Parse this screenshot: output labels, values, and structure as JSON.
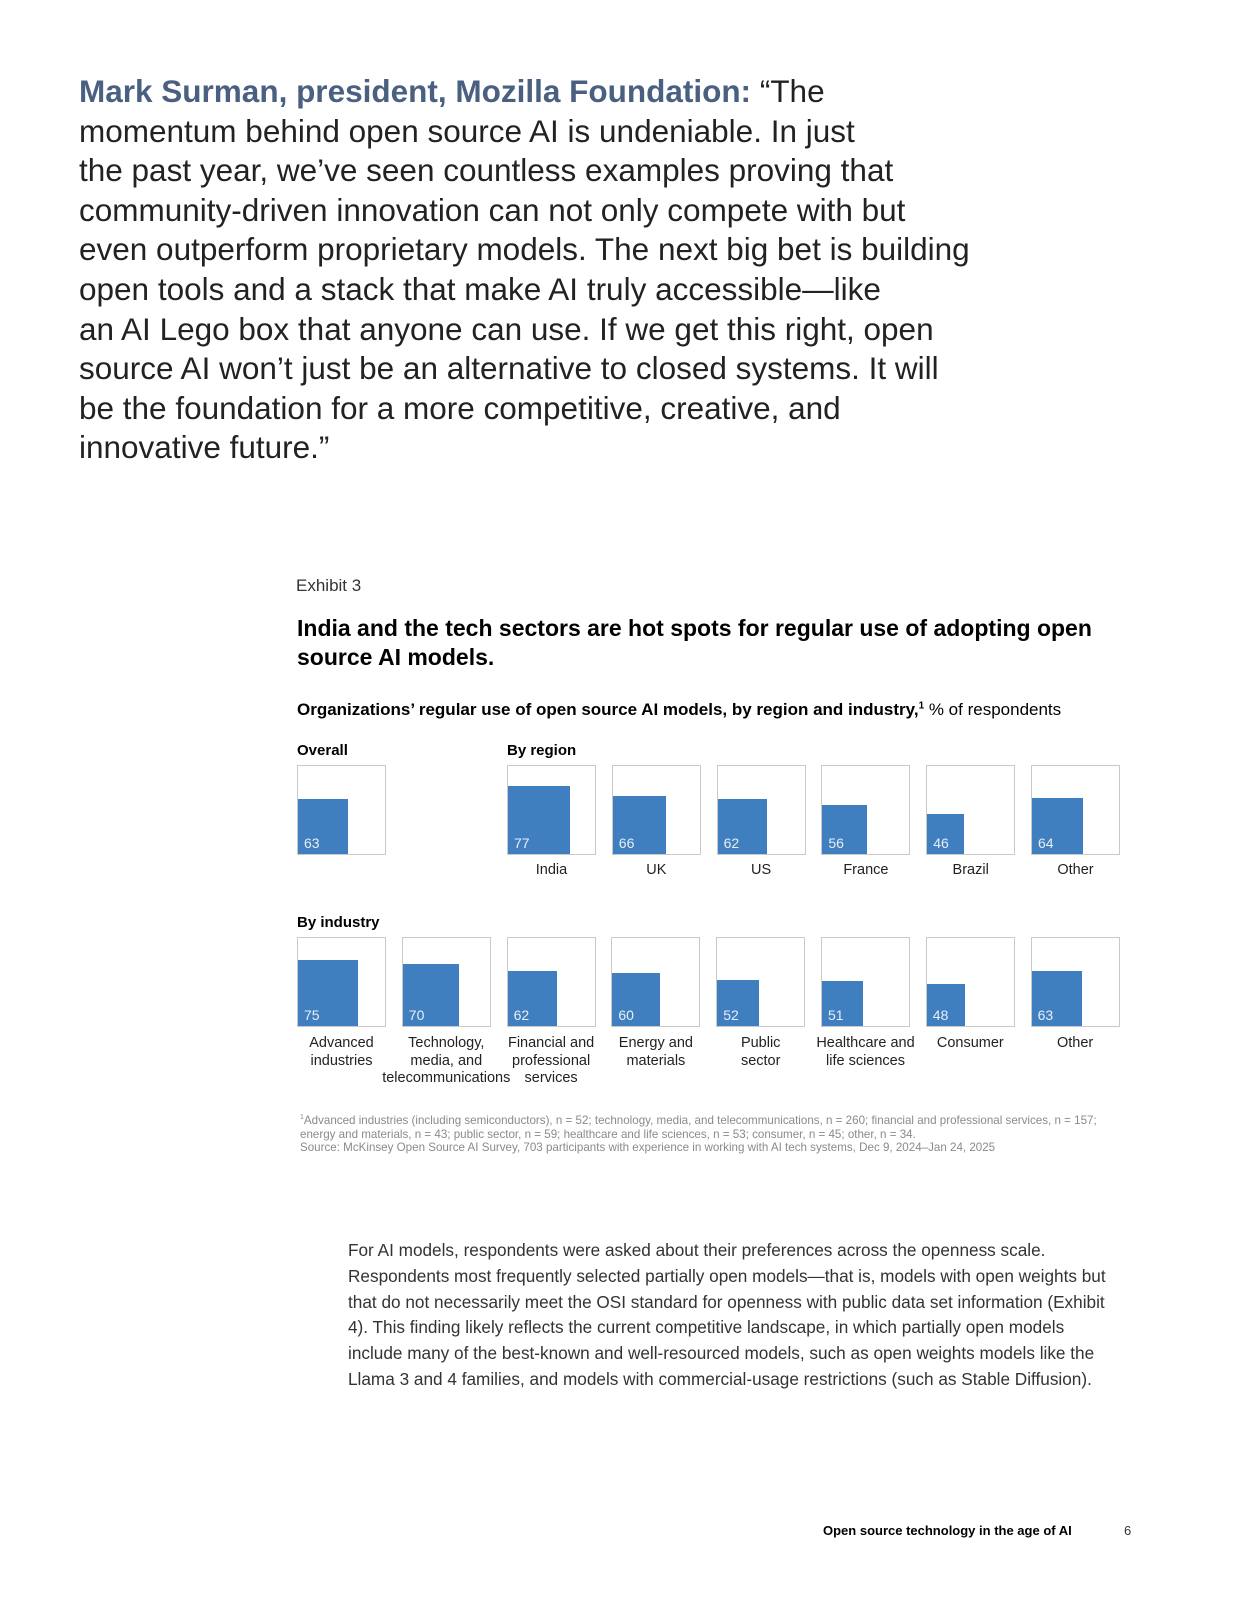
{
  "quote": {
    "speaker": "Mark Surman, president, Mozilla Foundation:",
    "lines": [
      "“The",
      "momentum behind open source AI is undeniable. In just",
      "the past year, we’ve seen countless examples proving that",
      "community-driven innovation can not only compete with but",
      "even outperform proprietary models. The next big bet is building",
      "open tools and a stack that make AI truly accessible—like",
      "an AI Lego box that anyone can use. If we get this right, open",
      "source AI won’t just be an alternative to closed systems. It will",
      "be the foundation for a more competitive, creative, and",
      "innovative future.”"
    ]
  },
  "exhibit": {
    "label": "Exhibit 3",
    "title": "India and the tech sectors are hot spots for regular use of adopting open source AI models.",
    "subtitle_bold": "Organizations’ regular use of open source AI models, by region and industry,",
    "subtitle_sup": "1",
    "subtitle_rest": " % of respondents"
  },
  "chart_data": [
    {
      "type": "bar",
      "group": "Overall",
      "categories": [
        ""
      ],
      "values": [
        63
      ],
      "ylim": [
        0,
        100
      ]
    },
    {
      "type": "bar",
      "group": "By region",
      "categories": [
        "India",
        "UK",
        "US",
        "France",
        "Brazil",
        "Other"
      ],
      "values": [
        77,
        66,
        62,
        56,
        46,
        64
      ],
      "ylim": [
        0,
        100
      ]
    },
    {
      "type": "bar",
      "group": "By industry",
      "categories": [
        [
          "Advanced",
          "industries"
        ],
        [
          "Technology,",
          "media, and",
          "telecommunications"
        ],
        [
          "Financial and",
          "professional",
          "services"
        ],
        [
          "Energy and",
          "materials"
        ],
        [
          "Public",
          "sector"
        ],
        [
          "Healthcare and",
          "life sciences"
        ],
        [
          "Consumer"
        ],
        [
          "Other"
        ]
      ],
      "values": [
        75,
        70,
        62,
        60,
        52,
        51,
        48,
        63
      ],
      "ylim": [
        0,
        100
      ]
    }
  ],
  "footnote": {
    "sup": "1",
    "line1": "Advanced industries (including semiconductors), n = 52; technology, media, and telecommunications, n = 260; financial and professional services, n = 157; energy and materials, n = 43; public sector, n = 59; healthcare and life sciences, n = 53; consumer, n = 45; other, n = 34.",
    "source": "Source: McKinsey Open Source AI Survey, 703 participants with experience in working with AI tech systems, Dec 9, 2024–Jan 24, 2025"
  },
  "body_paragraph": "For AI models, respondents were asked about their preferences across the openness scale. Respondents most frequently selected partially open models—that is, models with open weights but that do not necessarily meet the OSI standard for openness with public data set information (Exhibit 4). This finding likely reflects the current competitive landscape, in which partially open models include many of the best-known and well-resourced models, such as open weights models like the Llama 3 and 4 families, and models with commercial-usage restrictions (such as Stable Diffusion).",
  "footer": {
    "title": "Open source technology in the age of AI",
    "page": "6"
  },
  "colors": {
    "bar": "#3f7fbf",
    "speaker": "#4a6080"
  }
}
